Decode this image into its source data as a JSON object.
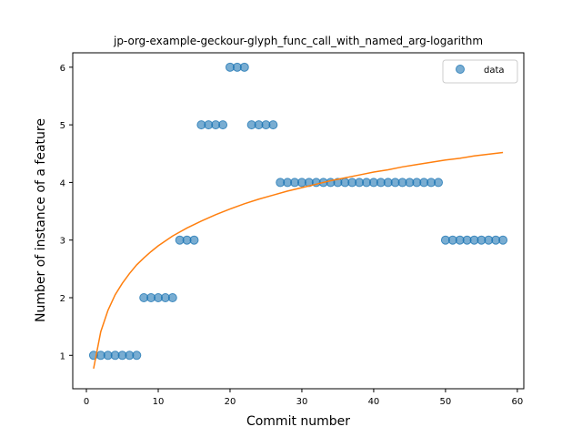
{
  "chart_data": {
    "type": "scatter",
    "title": "jp-org-example-geckour-glyph_func_call_with_named_arg-logarithm",
    "xlabel": "Commit number",
    "ylabel": "Number of instance of a feature",
    "xlim": [
      -1.9,
      60.9
    ],
    "ylim": [
      0.42,
      6.25
    ],
    "xticks": [
      0,
      10,
      20,
      30,
      40,
      50,
      60
    ],
    "yticks": [
      1,
      2,
      3,
      4,
      5,
      6
    ],
    "grid": false,
    "legend_position": "top-right",
    "series": [
      {
        "name": "data",
        "kind": "scatter",
        "color": "#1f77b4",
        "x": [
          1,
          2,
          3,
          4,
          5,
          6,
          7,
          8,
          9,
          10,
          11,
          12,
          13,
          14,
          15,
          16,
          17,
          18,
          19,
          20,
          21,
          22,
          23,
          24,
          25,
          26,
          27,
          28,
          29,
          30,
          31,
          32,
          33,
          34,
          35,
          36,
          37,
          38,
          39,
          40,
          41,
          42,
          43,
          44,
          45,
          46,
          47,
          48,
          49,
          50,
          51,
          52,
          53,
          54,
          55,
          56,
          57,
          58
        ],
        "y": [
          1,
          1,
          1,
          1,
          1,
          1,
          1,
          2,
          2,
          2,
          2,
          2,
          3,
          3,
          3,
          5,
          5,
          5,
          5,
          6,
          6,
          6,
          5,
          5,
          5,
          5,
          4,
          4,
          4,
          4,
          4,
          4,
          4,
          4,
          4,
          4,
          4,
          4,
          4,
          4,
          4,
          4,
          4,
          4,
          4,
          4,
          4,
          4,
          4,
          3,
          3,
          3,
          3,
          3,
          3,
          3,
          3,
          3
        ]
      },
      {
        "kind": "line",
        "color": "#ff7f0e",
        "fit": "logarithmic",
        "x": [
          1,
          2,
          3,
          4,
          5,
          6,
          7,
          8,
          9,
          10,
          12,
          14,
          16,
          18,
          20,
          22,
          24,
          26,
          28,
          30,
          32,
          34,
          36,
          38,
          40,
          42,
          44,
          46,
          48,
          50,
          52,
          54,
          56,
          58
        ],
        "y": [
          0.77,
          1.41,
          1.78,
          2.05,
          2.25,
          2.42,
          2.57,
          2.69,
          2.8,
          2.9,
          3.07,
          3.21,
          3.33,
          3.44,
          3.54,
          3.63,
          3.71,
          3.78,
          3.85,
          3.91,
          3.97,
          4.03,
          4.08,
          4.13,
          4.18,
          4.22,
          4.27,
          4.31,
          4.35,
          4.39,
          4.42,
          4.46,
          4.49,
          4.52
        ]
      }
    ]
  }
}
